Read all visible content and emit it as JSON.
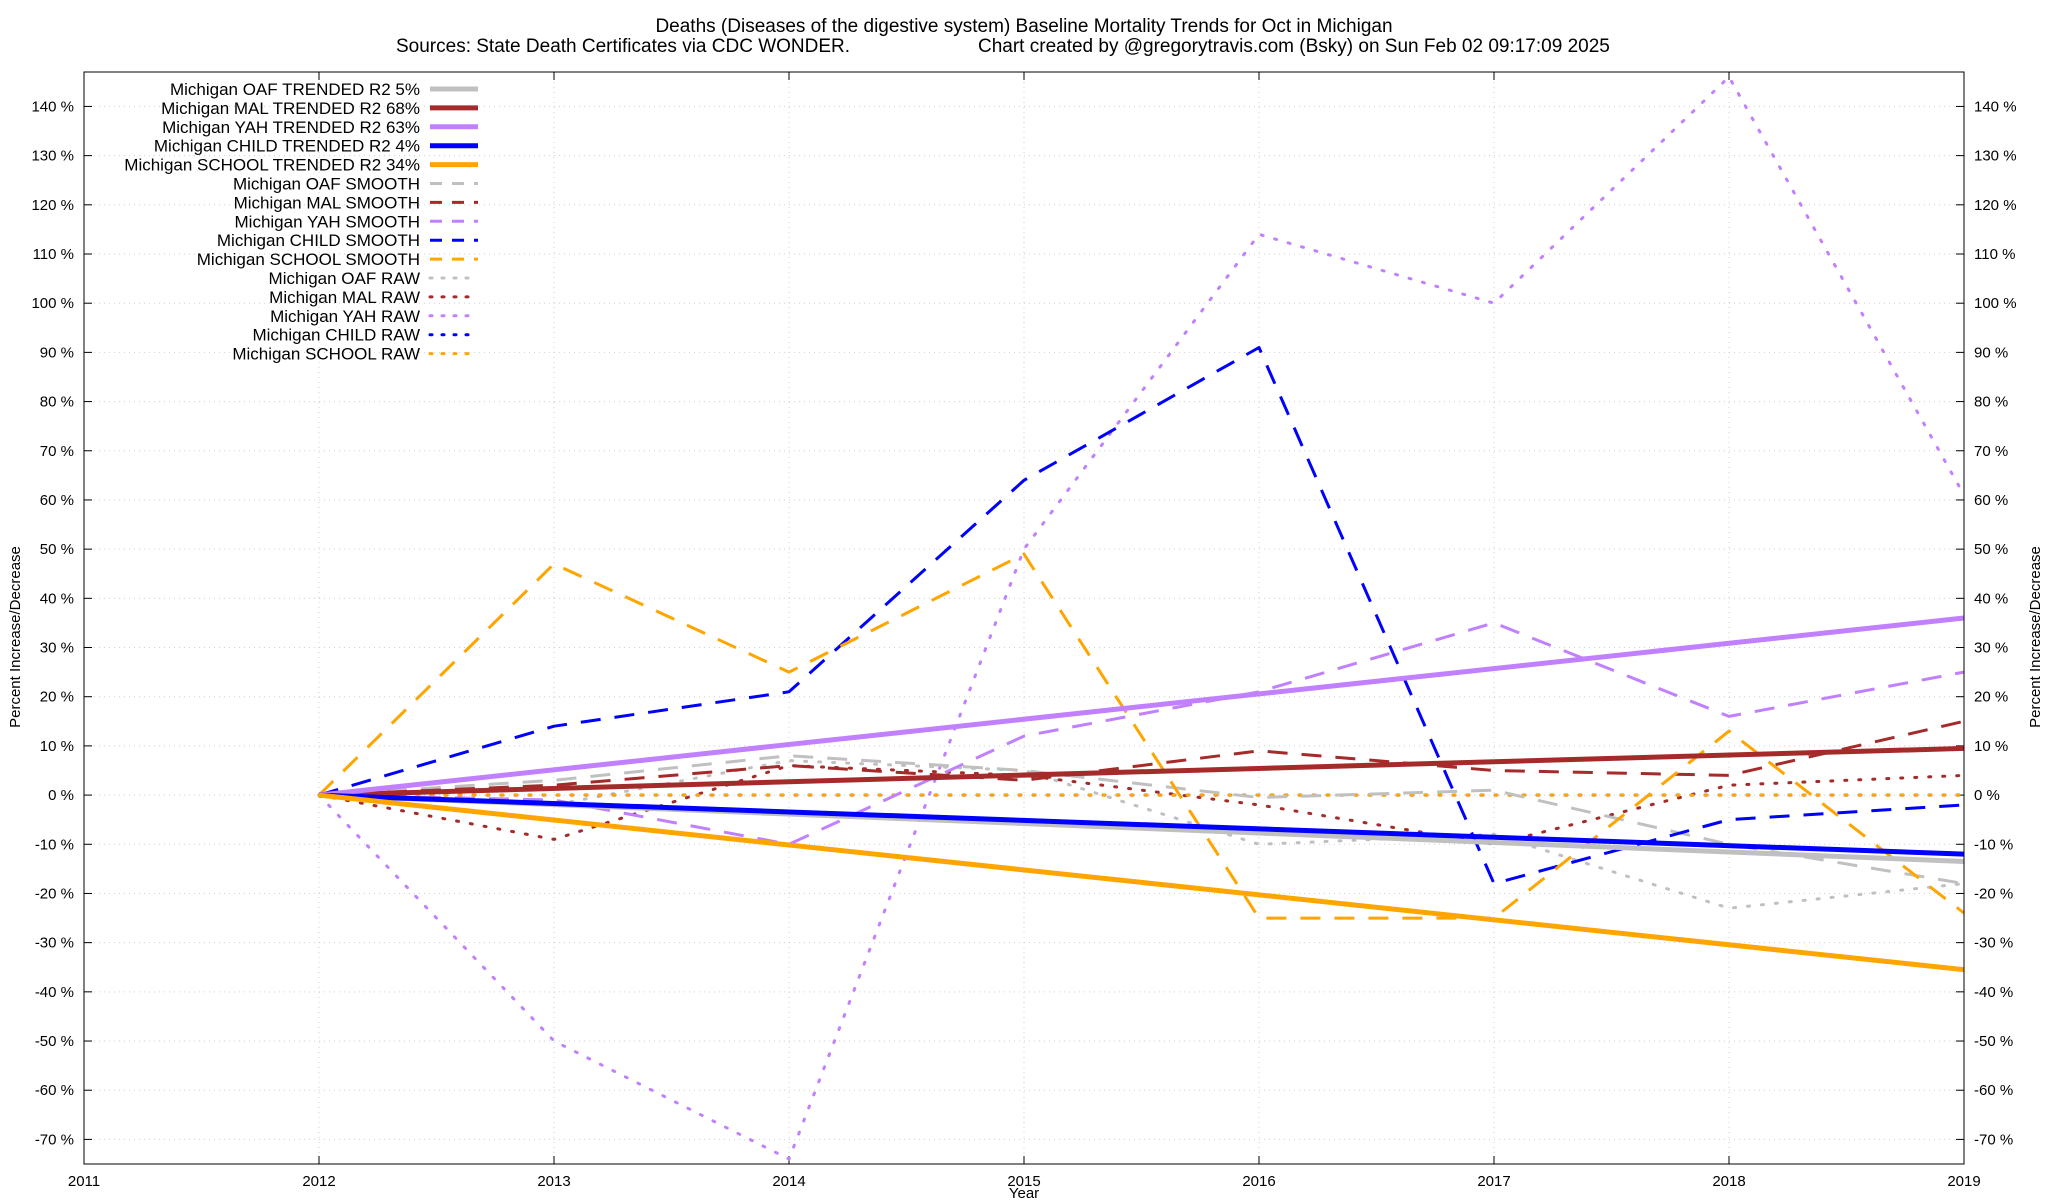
{
  "chart_data": {
    "type": "line",
    "title": "Deaths (Diseases of the digestive system)  Baseline Mortality Trends for Oct in Michigan",
    "subtitle_left": "Sources: State Death Certificates via CDC WONDER.",
    "subtitle_right": "Chart created by @gregorytravis.com (Bsky) on Sun Feb 02 09:17:09 2025",
    "xlabel": "Year",
    "ylabel_left": "Percent Increase/Decrease",
    "ylabel_right": "Percent Increase/Decrease",
    "xlim": [
      2011,
      2019
    ],
    "ylim": [
      -75,
      147
    ],
    "xticks": [
      "2011",
      "2012",
      "2013",
      "2014",
      "2015",
      "2016",
      "2017",
      "2018",
      "2019"
    ],
    "yticks": [
      "-70 %",
      "-60 %",
      "-50 %",
      "-40 %",
      "-30 %",
      "-20 %",
      "-10 %",
      "0 %",
      "10 %",
      "20 %",
      "30 %",
      "40 %",
      "50 %",
      "60 %",
      "70 %",
      "80 %",
      "90 %",
      "100 %",
      "110 %",
      "120 %",
      "130 %",
      "140 %"
    ],
    "grid": true,
    "legend_position": "top-left",
    "series": [
      {
        "name": "Michigan OAF TRENDED R2  5%",
        "style": "solid",
        "color": "#c0c0c0",
        "x": [
          2012,
          2019
        ],
        "values": [
          0,
          -13.5
        ]
      },
      {
        "name": "Michigan MAL TRENDED R2  68%",
        "style": "solid",
        "color": "#a52a2a",
        "x": [
          2012,
          2019
        ],
        "values": [
          0,
          9.5
        ]
      },
      {
        "name": "Michigan YAH TRENDED R2  63%",
        "style": "solid",
        "color": "#c080ff",
        "x": [
          2012,
          2019
        ],
        "values": [
          0,
          36
        ]
      },
      {
        "name": "Michigan CHILD TRENDED R2  4%",
        "style": "solid",
        "color": "#0000ff",
        "x": [
          2012,
          2019
        ],
        "values": [
          0,
          -12
        ]
      },
      {
        "name": "Michigan SCHOOL TRENDED R2  34%",
        "style": "solid",
        "color": "#ffa500",
        "x": [
          2012,
          2019
        ],
        "values": [
          0,
          -35.5
        ]
      },
      {
        "name": "Michigan OAF SMOOTH",
        "style": "dashed",
        "color": "#c0c0c0",
        "x": [
          2012,
          2013,
          2014,
          2015,
          2016,
          2017,
          2018,
          2019
        ],
        "values": [
          0,
          3,
          8,
          5,
          -0.5,
          1,
          -10,
          -18
        ]
      },
      {
        "name": "Michigan MAL SMOOTH",
        "style": "dashed",
        "color": "#a52a2a",
        "x": [
          2012,
          2013,
          2014,
          2015,
          2016,
          2017,
          2018,
          2019
        ],
        "values": [
          0,
          2,
          6,
          3,
          9,
          5,
          4,
          15
        ]
      },
      {
        "name": "Michigan YAH SMOOTH",
        "style": "dashed",
        "color": "#c080ff",
        "x": [
          2012,
          2013,
          2014,
          2015,
          2016,
          2017,
          2018,
          2019
        ],
        "values": [
          0,
          -1,
          -10,
          12,
          21,
          35,
          16,
          25
        ]
      },
      {
        "name": "Michigan CHILD SMOOTH",
        "style": "dashed",
        "color": "#0000ff",
        "x": [
          2012,
          2013,
          2014,
          2015,
          2016,
          2017,
          2018,
          2019
        ],
        "values": [
          0,
          14,
          21,
          64,
          91,
          -18,
          -5,
          -2
        ]
      },
      {
        "name": "Michigan SCHOOL SMOOTH",
        "style": "dashed",
        "color": "#ffa500",
        "x": [
          2012,
          2013,
          2014,
          2015,
          2016,
          2017,
          2018,
          2019
        ],
        "values": [
          0,
          47,
          25,
          49,
          -25,
          -25,
          13,
          -24
        ]
      },
      {
        "name": "Michigan OAF RAW",
        "style": "dotted",
        "color": "#c0c0c0",
        "x": [
          2012,
          2013,
          2014,
          2015,
          2016,
          2017,
          2018,
          2019
        ],
        "values": [
          0,
          -2,
          7,
          5,
          -10,
          -8,
          -23,
          -18
        ]
      },
      {
        "name": "Michigan MAL RAW",
        "style": "dotted",
        "color": "#a52a2a",
        "x": [
          2012,
          2013,
          2014,
          2015,
          2016,
          2017,
          2018,
          2019
        ],
        "values": [
          0,
          -9,
          6,
          4,
          -2,
          -10,
          2,
          4
        ]
      },
      {
        "name": "Michigan YAH RAW",
        "style": "dotted",
        "color": "#c080ff",
        "x": [
          2012,
          2013,
          2014,
          2015,
          2016,
          2017,
          2018,
          2019
        ],
        "values": [
          0,
          -50,
          -74,
          50,
          114,
          100,
          146,
          61
        ]
      },
      {
        "name": "Michigan CHILD RAW",
        "style": "dotted",
        "color": "#0000ff",
        "x": [
          2012,
          2013,
          2014,
          2015,
          2016,
          2017,
          2018,
          2019
        ],
        "values": [
          0,
          0,
          0,
          0,
          0,
          0,
          0,
          0
        ]
      },
      {
        "name": "Michigan SCHOOL RAW",
        "style": "dotted",
        "color": "#ffa500",
        "x": [
          2012,
          2013,
          2014,
          2015,
          2016,
          2017,
          2018,
          2019
        ],
        "values": [
          0,
          0,
          0,
          0,
          0,
          0,
          0,
          0
        ]
      }
    ]
  }
}
